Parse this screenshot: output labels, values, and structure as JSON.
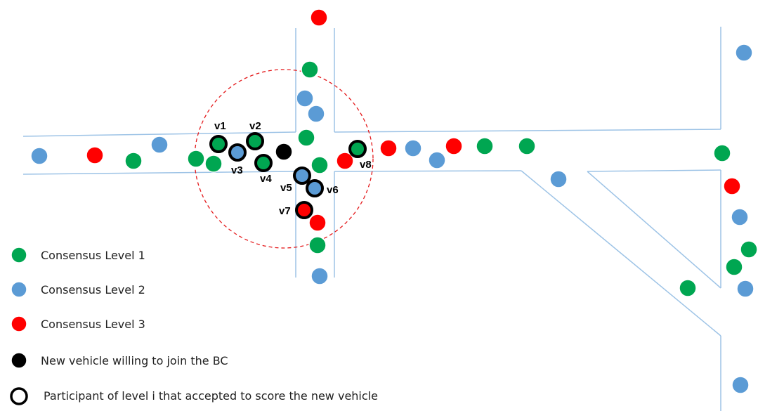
{
  "colors": {
    "level1": "#00a651",
    "level2": "#5b9bd5",
    "level3": "#ff0000",
    "new_vehicle": "#000000",
    "road": "#9dc3e6",
    "range": "#e41a1c"
  },
  "participant_labels": {
    "v1": "v1",
    "v2": "v2",
    "v3": "v3",
    "v4": "v4",
    "v5": "v5",
    "v6": "v6",
    "v7": "v7",
    "v8": "v8"
  },
  "legend": {
    "level1": "Consensus Level 1",
    "level2": "Consensus Level 2",
    "level3": "Consensus Level 3",
    "new_vehicle": "New vehicle willing to join the BC",
    "participant": "Participant of level i that accepted to score the new vehicle"
  }
}
